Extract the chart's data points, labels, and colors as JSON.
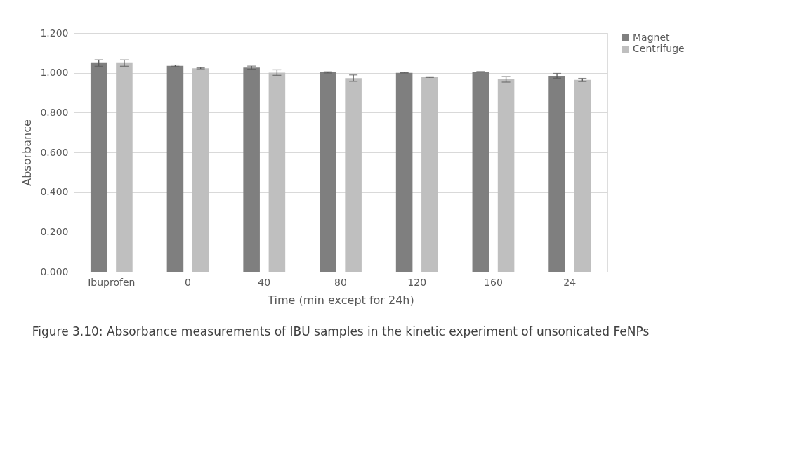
{
  "chart_data": {
    "type": "bar",
    "title": "Figure 3.10: Absorbance measurements of IBU samples in the kinetic experiment of unsonicated FeNPs",
    "xlabel": "Time (min except for 24h)",
    "ylabel": "Absorbance",
    "categories": [
      "Ibuprofen",
      "0",
      "40",
      "80",
      "120",
      "160",
      "24"
    ],
    "series": [
      {
        "name": "Magnet",
        "color": "#7f7f7f",
        "values": [
          1.049,
          1.035,
          1.026,
          1.002,
          1.0,
          1.005,
          0.985
        ],
        "errors": [
          0.016,
          0.004,
          0.008,
          0.003,
          0.001,
          0.001,
          0.012
        ]
      },
      {
        "name": "Centrifuge",
        "color": "#bfbfbf",
        "values": [
          1.049,
          1.023,
          1.001,
          0.973,
          0.978,
          0.967,
          0.964
        ],
        "errors": [
          0.016,
          0.003,
          0.014,
          0.016,
          0.002,
          0.014,
          0.008
        ]
      }
    ],
    "ylim": [
      0,
      1.2
    ],
    "yticks": [
      {
        "value": 0,
        "label": "0.000"
      },
      {
        "value": 0.2,
        "label": "0.200"
      },
      {
        "value": 0.4,
        "label": "0.400"
      },
      {
        "value": 0.6,
        "label": "0.600"
      },
      {
        "value": 0.8,
        "label": "0.800"
      },
      {
        "value": 1.0,
        "label": "1.000"
      },
      {
        "value": 1.2,
        "label": "1.200"
      }
    ],
    "grid": "y",
    "legend": "right"
  }
}
